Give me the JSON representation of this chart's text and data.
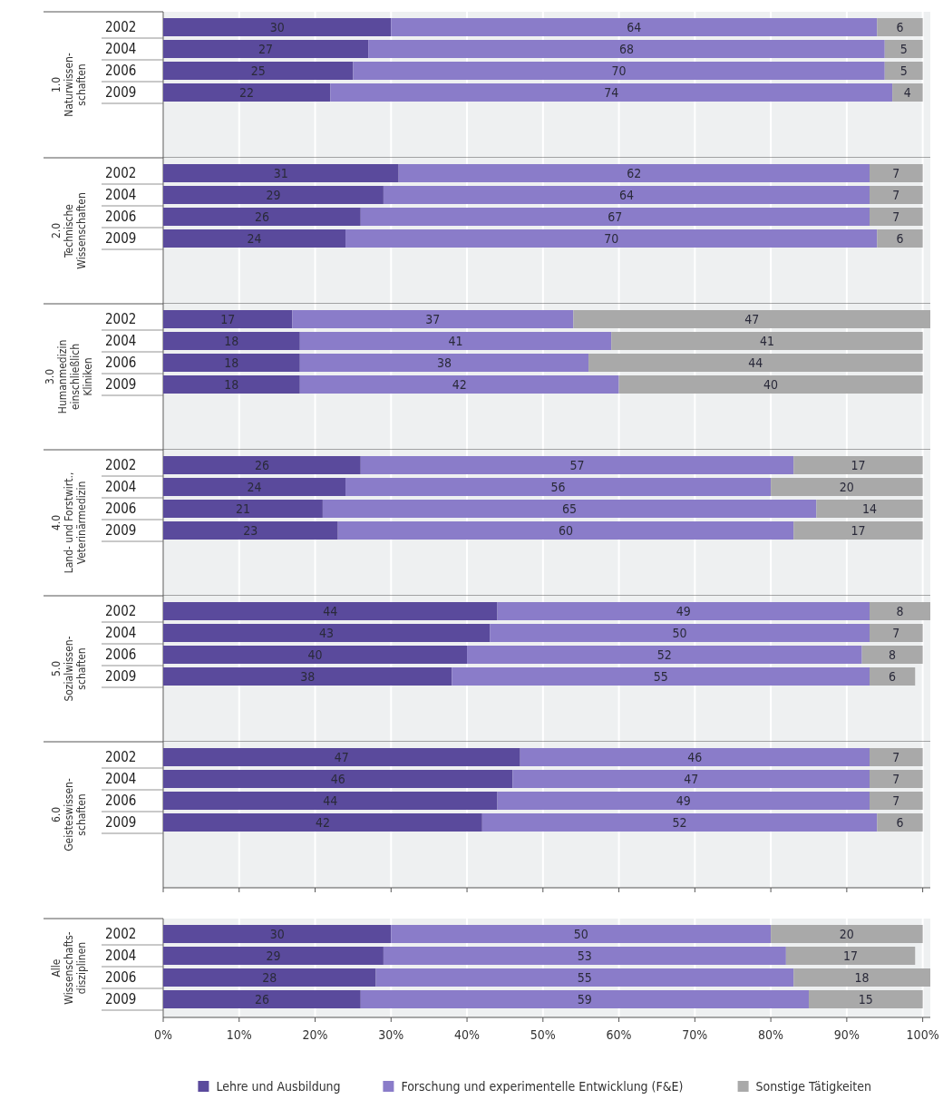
{
  "chart_data": [
    {
      "type": "bar",
      "orientation": "horizontal",
      "stacked": true,
      "title": "1.0\nNaturwissen-\nschaften",
      "categories": [
        "2002",
        "2004",
        "2006",
        "2009"
      ],
      "xlim": [
        0,
        101
      ],
      "xticks": [
        0,
        10,
        20,
        30,
        40,
        50,
        60,
        70,
        80,
        90,
        100
      ],
      "grid": "x",
      "data_labels": true,
      "tick_labels": "y",
      "series": [
        {
          "color": "#5a4a9c",
          "values": [
            30,
            27,
            25,
            22
          ]
        },
        {
          "color": "#8a7cc9",
          "values": [
            64,
            68,
            70,
            74
          ]
        },
        {
          "color": "#a9a9a9",
          "values": [
            6,
            5,
            5,
            4
          ]
        }
      ]
    },
    {
      "type": "bar",
      "orientation": "horizontal",
      "stacked": true,
      "title": "2.0\nTechnische\nWissenschaften",
      "categories": [
        "2002",
        "2004",
        "2006",
        "2009"
      ],
      "xlim": [
        0,
        101
      ],
      "xticks": [
        0,
        10,
        20,
        30,
        40,
        50,
        60,
        70,
        80,
        90,
        100
      ],
      "grid": "x",
      "data_labels": true,
      "tick_labels": "y",
      "series": [
        {
          "color": "#5a4a9c",
          "values": [
            31,
            29,
            26,
            24
          ]
        },
        {
          "color": "#8a7cc9",
          "values": [
            62,
            64,
            67,
            70
          ]
        },
        {
          "color": "#a9a9a9",
          "values": [
            7,
            7,
            7,
            6
          ]
        }
      ]
    },
    {
      "type": "bar",
      "orientation": "horizontal",
      "stacked": true,
      "title": "3.0\nHumanmedizin\neinschließlich\nKliniken",
      "categories": [
        "2002",
        "2004",
        "2006",
        "2009"
      ],
      "xlim": [
        0,
        101
      ],
      "xticks": [
        0,
        10,
        20,
        30,
        40,
        50,
        60,
        70,
        80,
        90,
        100
      ],
      "grid": "x",
      "data_labels": true,
      "tick_labels": "y",
      "series": [
        {
          "color": "#5a4a9c",
          "values": [
            17,
            18,
            18,
            18
          ]
        },
        {
          "color": "#8a7cc9",
          "values": [
            37,
            41,
            38,
            42
          ]
        },
        {
          "color": "#a9a9a9",
          "values": [
            47,
            41,
            44,
            40
          ]
        }
      ]
    },
    {
      "type": "bar",
      "orientation": "horizontal",
      "stacked": true,
      "title": "4.0\nLand- und Forstwirt.,\nVeterinärmedizin",
      "categories": [
        "2002",
        "2004",
        "2006",
        "2009"
      ],
      "xlim": [
        0,
        101
      ],
      "xticks": [
        0,
        10,
        20,
        30,
        40,
        50,
        60,
        70,
        80,
        90,
        100
      ],
      "grid": "x",
      "data_labels": true,
      "tick_labels": "y",
      "series": [
        {
          "color": "#5a4a9c",
          "values": [
            26,
            24,
            21,
            23
          ]
        },
        {
          "color": "#8a7cc9",
          "values": [
            57,
            56,
            65,
            60
          ]
        },
        {
          "color": "#a9a9a9",
          "values": [
            17,
            20,
            14,
            17
          ]
        }
      ]
    },
    {
      "type": "bar",
      "orientation": "horizontal",
      "stacked": true,
      "title": "5.0\nSozialwissen-\nschaften",
      "categories": [
        "2002",
        "2004",
        "2006",
        "2009"
      ],
      "xlim": [
        0,
        101
      ],
      "xticks": [
        0,
        10,
        20,
        30,
        40,
        50,
        60,
        70,
        80,
        90,
        100
      ],
      "grid": "x",
      "data_labels": true,
      "tick_labels": "y",
      "series": [
        {
          "color": "#5a4a9c",
          "values": [
            44,
            43,
            40,
            38
          ]
        },
        {
          "color": "#8a7cc9",
          "values": [
            49,
            50,
            52,
            55
          ]
        },
        {
          "color": "#a9a9a9",
          "values": [
            8,
            7,
            8,
            6
          ]
        }
      ]
    },
    {
      "type": "bar",
      "orientation": "horizontal",
      "stacked": true,
      "title": "6.0\nGeisteswissen-\nschaften",
      "categories": [
        "2002",
        "2004",
        "2006",
        "2009"
      ],
      "xlim": [
        0,
        101
      ],
      "xticks": [
        0,
        10,
        20,
        30,
        40,
        50,
        60,
        70,
        80,
        90,
        100
      ],
      "grid": "x",
      "data_labels": true,
      "tick_labels": "y",
      "series": [
        {
          "color": "#5a4a9c",
          "values": [
            47,
            46,
            44,
            42
          ]
        },
        {
          "color": "#8a7cc9",
          "values": [
            46,
            47,
            49,
            52
          ]
        },
        {
          "color": "#a9a9a9",
          "values": [
            7,
            7,
            7,
            6
          ]
        }
      ]
    },
    {
      "type": "bar",
      "orientation": "horizontal",
      "stacked": true,
      "title": "Alle\nWissenschafts-\ndisziplinen",
      "categories": [
        "2002",
        "2004",
        "2006",
        "2009"
      ],
      "xlim": [
        0,
        101
      ],
      "xticks": [
        {
          "value": 0,
          "label": "0%"
        },
        {
          "value": 10,
          "label": "10%"
        },
        {
          "value": 20,
          "label": "20%"
        },
        {
          "value": 30,
          "label": "30%"
        },
        {
          "value": 40,
          "label": "40%"
        },
        {
          "value": 50,
          "label": "50%"
        },
        {
          "value": 60,
          "label": "60%"
        },
        {
          "value": 70,
          "label": "70%"
        },
        {
          "value": 80,
          "label": "80%"
        },
        {
          "value": 90,
          "label": "90%"
        },
        {
          "value": 100,
          "label": "100%"
        }
      ],
      "grid": "x",
      "data_labels": true,
      "legend": "bottom",
      "series": [
        {
          "name": "Lehre und Ausbildung",
          "color": "#5a4a9c",
          "values": [
            30,
            29,
            28,
            26
          ]
        },
        {
          "name": "Forschung und experimentelle Entwicklung (F&E)",
          "color": "#8a7cc9",
          "values": [
            50,
            53,
            55,
            59
          ]
        },
        {
          "name": "Sonstige Tätigkeiten",
          "color": "#a9a9a9",
          "values": [
            20,
            17,
            18,
            15
          ]
        }
      ]
    }
  ]
}
